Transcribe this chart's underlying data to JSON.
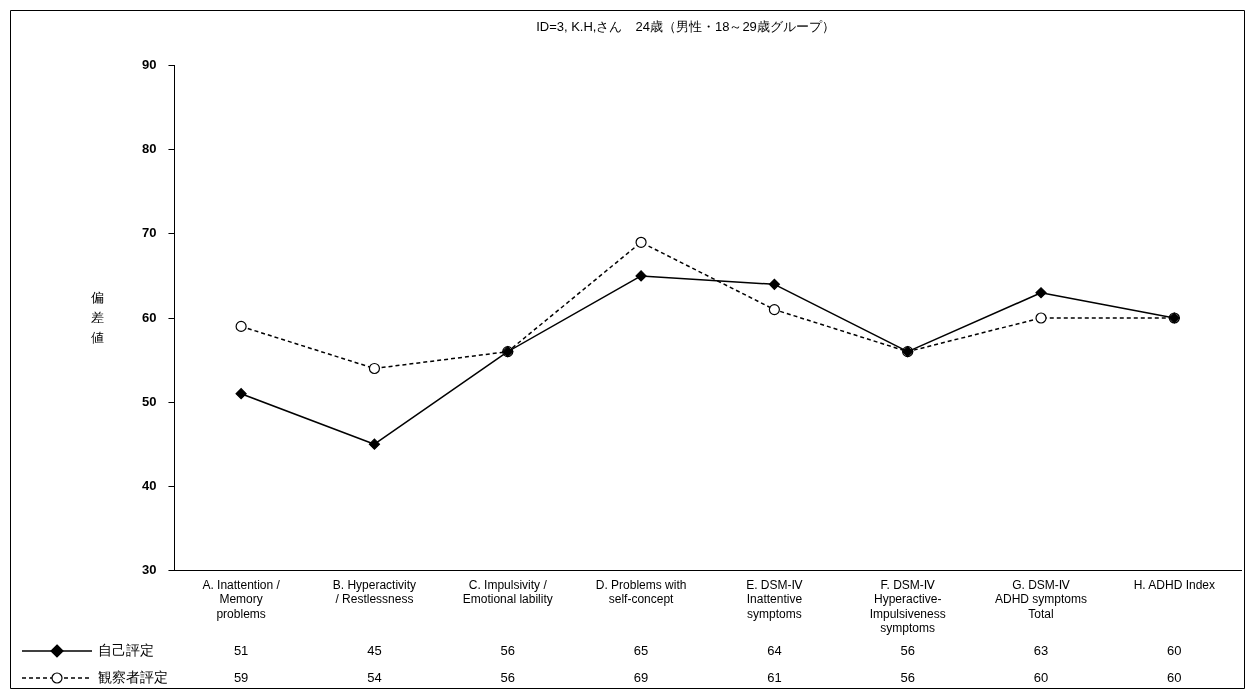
{
  "chart_data": {
    "type": "line",
    "title": "ID=3, K.H,さん　24歳（男性・18～29歳グループ）",
    "ylabel": "偏差値",
    "categories": [
      "A. Inattention /\nMemory\nproblems",
      "B. Hyperactivity\n/ Restlessness",
      "C. Impulsivity /\nEmotional lability",
      "D. Problems with\nself-concept",
      "E. DSM-Ⅳ\nInattentive\nsymptoms",
      "F. DSM-Ⅳ\nHyperactive-\nImpulsiveness\nsymptoms",
      "G. DSM-Ⅳ\nADHD symptoms\nTotal",
      "H. ADHD Index"
    ],
    "series": [
      {
        "name": "自己評定",
        "color": "#000000",
        "values": [
          51,
          45,
          56,
          65,
          64,
          56,
          63,
          60
        ],
        "marker": "diamond",
        "line_style": "solid"
      },
      {
        "name": "観察者評定",
        "color": "#000000",
        "values": [
          59,
          54,
          56,
          69,
          61,
          56,
          60,
          60
        ],
        "marker": "circle",
        "line_style": "dashed"
      }
    ],
    "ylim": [
      30,
      90
    ],
    "yticks": [
      30,
      40,
      50,
      60,
      70,
      80,
      90
    ],
    "grid": false,
    "legend": "bottom left",
    "data_labels": true
  }
}
